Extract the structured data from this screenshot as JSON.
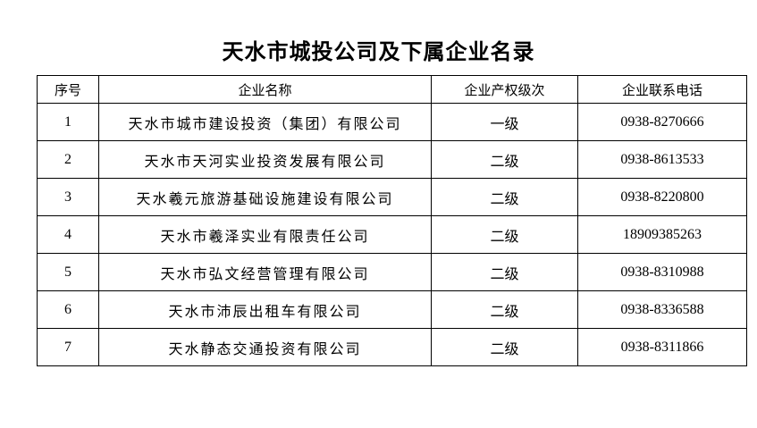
{
  "page": {
    "title": "天水市城投公司及下属企业名录"
  },
  "table": {
    "headers": [
      "序号",
      "企业名称",
      "企业产权级次",
      "企业联系电话"
    ],
    "rows": [
      {
        "no": "1",
        "name": "天水市城市建设投资（集团）有限公司",
        "level": "一级",
        "phone": "0938-8270666"
      },
      {
        "no": "2",
        "name": "天水市天河实业投资发展有限公司",
        "level": "二级",
        "phone": "0938-8613533"
      },
      {
        "no": "3",
        "name": "天水羲元旅游基础设施建设有限公司",
        "level": "二级",
        "phone": "0938-8220800"
      },
      {
        "no": "4",
        "name": "天水市羲泽实业有限责任公司",
        "level": "二级",
        "phone": "18909385263"
      },
      {
        "no": "5",
        "name": "天水市弘文经营管理有限公司",
        "level": "二级",
        "phone": "0938-8310988"
      },
      {
        "no": "6",
        "name": "天水市沛辰出租车有限公司",
        "level": "二级",
        "phone": "0938-8336588"
      },
      {
        "no": "7",
        "name": "天水静态交通投资有限公司",
        "level": "二级",
        "phone": "0938-8311866"
      }
    ]
  },
  "colors": {
    "text": "#000000",
    "border": "#000000",
    "background": "#ffffff"
  }
}
